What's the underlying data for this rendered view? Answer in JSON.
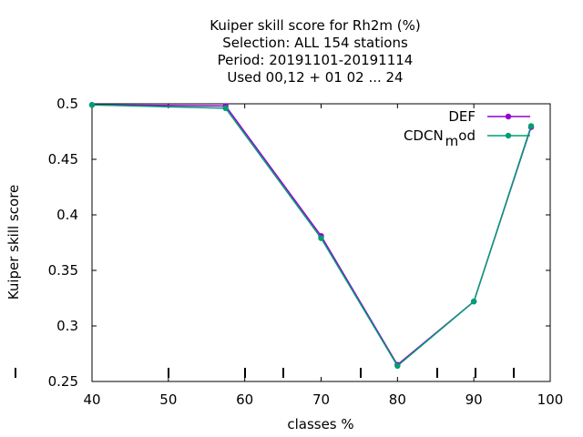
{
  "chart_data": {
    "type": "line",
    "title_lines": [
      "Kuiper skill score  for Rh2m (%)",
      "Selection: ALL    154 stations",
      "Period: 20191101-20191114",
      "Used  00,12  + 01 02 ... 24"
    ],
    "xlabel": "classes %",
    "ylabel": "Kuiper skill score",
    "xlim": [
      40,
      100
    ],
    "ylim": [
      0.25,
      0.5
    ],
    "xticks": [
      "40",
      "50",
      "60",
      "70",
      "80",
      "90",
      "100"
    ],
    "yticks": [
      "0.25",
      "0.3",
      "0.35",
      "0.4",
      "0.45",
      "0.5"
    ],
    "legend_position": "top-right",
    "grid": false,
    "series": [
      {
        "name": "DEF",
        "color": "#9400d3",
        "x": [
          40,
          57.5,
          70,
          80,
          90,
          97.5
        ],
        "y": [
          0.499,
          0.498,
          0.381,
          0.265,
          0.322,
          0.479
        ]
      },
      {
        "name": "CDCN_mod",
        "legend_main": "CDCN",
        "legend_sub": "m",
        "legend_tail": "od",
        "color": "#009e73",
        "x": [
          40,
          57.5,
          70,
          80,
          90,
          97.5
        ],
        "y": [
          0.499,
          0.496,
          0.379,
          0.264,
          0.322,
          0.48
        ]
      }
    ]
  }
}
